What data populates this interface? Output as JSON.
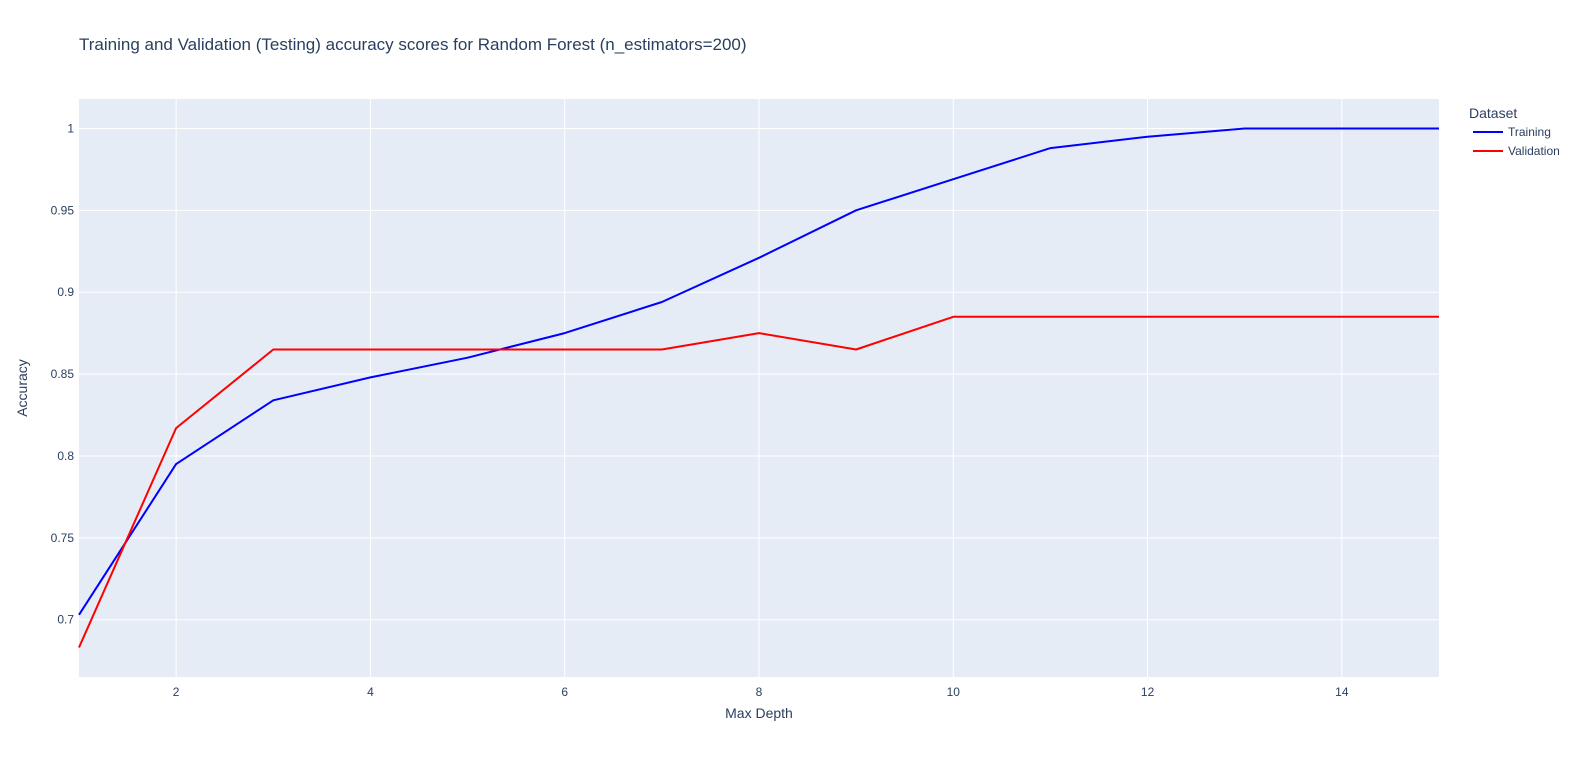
{
  "chart_data": {
    "type": "line",
    "title": "Training and Validation (Testing) accuracy scores for Random Forest (n_estimators=200)",
    "xlabel": "Max Depth",
    "ylabel": "Accuracy",
    "xlim": [
      1,
      15
    ],
    "ylim": [
      0.665,
      1.018
    ],
    "x_ticks": [
      2,
      4,
      6,
      8,
      10,
      12,
      14
    ],
    "y_ticks": [
      0.7,
      0.75,
      0.8,
      0.85,
      0.9,
      0.95,
      1
    ],
    "y_tick_labels": [
      "0.7",
      "0.75",
      "0.8",
      "0.85",
      "0.9",
      "0.95",
      "1"
    ],
    "grid": true,
    "plot_background": "#e5ecf6",
    "legend": {
      "title": "Dataset",
      "placement": "top-right, outside plot"
    },
    "x": [
      1,
      2,
      3,
      4,
      5,
      6,
      7,
      8,
      9,
      10,
      11,
      12,
      13,
      14,
      15
    ],
    "series": [
      {
        "name": "Training",
        "color": "#0000ff",
        "values": [
          0.703,
          0.795,
          0.834,
          0.848,
          0.86,
          0.875,
          0.894,
          0.921,
          0.95,
          0.969,
          0.988,
          0.995,
          1.0,
          1.0,
          1.0
        ]
      },
      {
        "name": "Validation",
        "color": "#ff0000",
        "values": [
          0.683,
          0.817,
          0.865,
          0.865,
          0.865,
          0.865,
          0.865,
          0.875,
          0.865,
          0.885,
          0.885,
          0.885,
          0.885,
          0.885,
          0.885
        ]
      }
    ]
  }
}
